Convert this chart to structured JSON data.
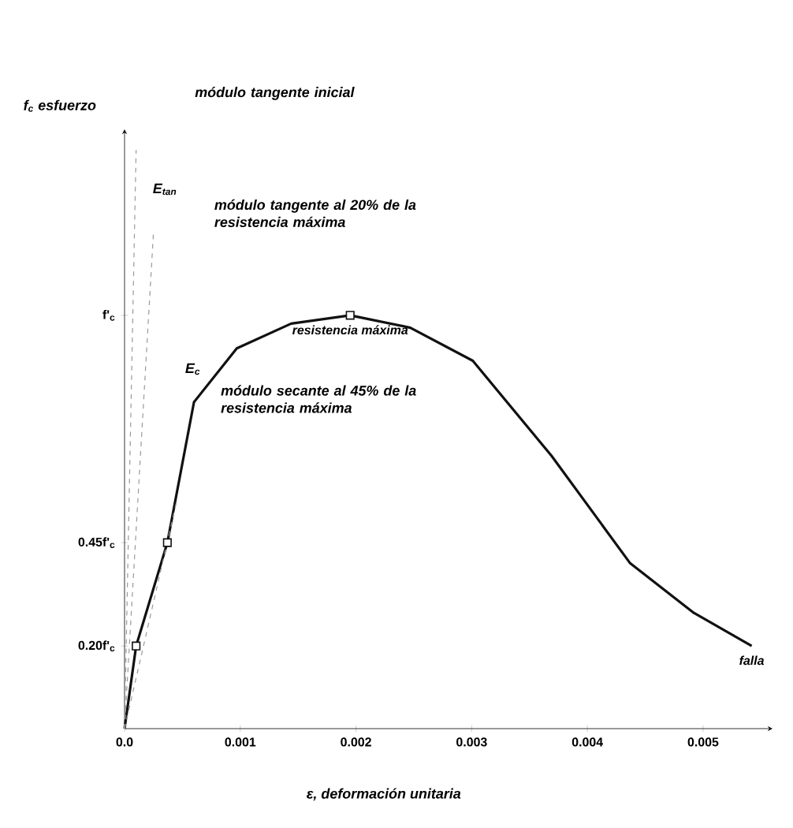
{
  "chart_data": {
    "type": "line",
    "xlabel": "ε, deformación unitaria",
    "ylabel": "f$_{c}$ esfuerzo",
    "xlim": [
      0,
      0.0056
    ],
    "ylim": [
      0,
      1.45
    ],
    "xticks": [
      {
        "value": 0,
        "label": "0.0"
      },
      0.001,
      0.002,
      0.003,
      0.004,
      0.005
    ],
    "yticks": [
      {
        "value": 0.2,
        "label": "0.20f'$_{c}$"
      },
      {
        "value": 0.45,
        "label": "0.45f'$_{c}$"
      },
      {
        "value": 1,
        "label": "f'$_{c}$"
      }
    ],
    "series": [
      {
        "type": "line",
        "color": "#111111",
        "marker": "none",
        "line_style": "solid",
        "x": [
          0,
          0.0001,
          0.00037,
          0.0006,
          0.00097,
          0.00144,
          0.00195,
          0.00247,
          0.00301,
          0.00369,
          0.00437,
          0.00492,
          0.00542
        ],
        "values": [
          0,
          0.2,
          0.45,
          0.79,
          0.92,
          0.98,
          1,
          0.97,
          0.89,
          0.66,
          0.4,
          0.28,
          0.2
        ]
      },
      {
        "type": "scatter",
        "color": "#111111",
        "marker": "square",
        "x": [
          0.0001,
          0.00037,
          0.00195
        ],
        "values": [
          0.2,
          0.45,
          1
        ]
      },
      {
        "type": "line",
        "color": "#999999",
        "marker": "none",
        "line_style": "dashed",
        "x": [
          0,
          0.0001
        ],
        "values": [
          0,
          1.4
        ]
      },
      {
        "type": "line",
        "color": "#999999",
        "marker": "none",
        "line_style": "dashed",
        "x": [
          0,
          0.00025
        ],
        "values": [
          0,
          1.2
        ]
      },
      {
        "type": "line",
        "color": "#999999",
        "marker": "none",
        "line_style": "dashed",
        "x": [
          0,
          0.00045
        ],
        "values": [
          0,
          0.55
        ]
      }
    ],
    "annotations": [
      "módulo tangente inicial",
      "E$_{tan}$",
      "módulo tangente al 20% de la resistencia máxima",
      "E$_{c}$",
      "módulo secante al 45% de la resistencia máxima",
      {
        "text": "resistencia máxima",
        "x": 0.00195,
        "y": 1
      },
      {
        "text": "falla",
        "x": 0.00542,
        "y": 0.2
      }
    ]
  }
}
